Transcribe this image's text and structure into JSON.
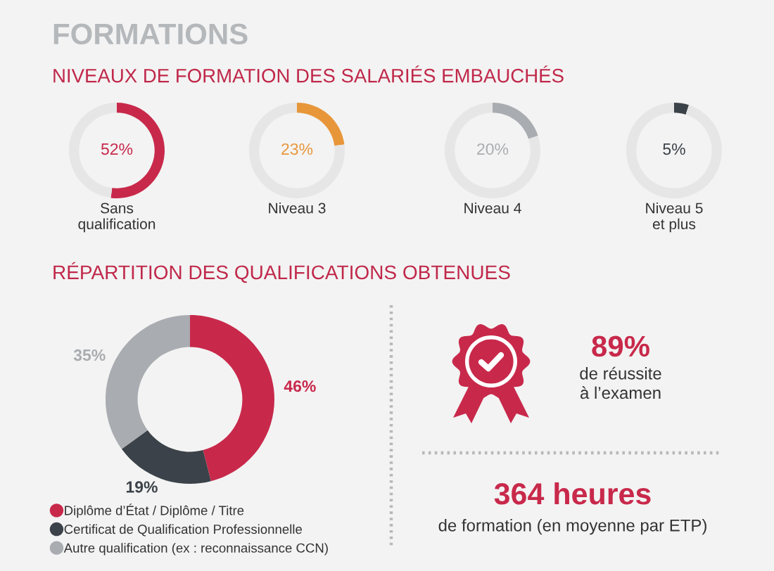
{
  "chart_data": [
    {
      "type": "other",
      "title": "FORMATIONS",
      "subtitle": "NIVEAUX DE FORMATION DES SALARIÉS EMBAUCHÉS"
    },
    {
      "type": "donut",
      "title": "Sans\nqualification",
      "categories": [
        null,
        null
      ],
      "values": [
        52,
        48
      ],
      "colors": [
        "#c8294b",
        "#e6e6e6"
      ],
      "value_labels": [
        "52%",
        null
      ]
    },
    {
      "type": "donut",
      "title": "Niveau 3",
      "categories": [
        null,
        null
      ],
      "values": [
        23,
        77
      ],
      "colors": [
        "#e8963a",
        "#e6e6e6"
      ],
      "value_labels": [
        "23%",
        null
      ]
    },
    {
      "type": "donut",
      "title": "Niveau 4",
      "categories": [
        null,
        null
      ],
      "values": [
        20,
        80
      ],
      "colors": [
        "#a9acb0",
        "#e6e6e6"
      ],
      "value_labels": [
        "20%",
        null
      ]
    },
    {
      "type": "donut",
      "title": "Niveau 5\net plus",
      "categories": [
        null,
        null
      ],
      "values": [
        5,
        95
      ],
      "colors": [
        "#3c4249",
        "#e6e6e6"
      ],
      "value_labels": [
        "5%",
        null
      ]
    },
    {
      "type": "donut",
      "title": "RÉPARTITION DES QUALIFICATIONS OBTENUES",
      "categories": [
        "Diplôme d’État / Diplôme / Titre",
        "Certificat de Qualification Professionnelle",
        "Autre qualification (ex : reconnaissance CCN)"
      ],
      "values": [
        46,
        19,
        35
      ],
      "colors": [
        "#c8294b",
        "#3c4249",
        "#a9acb0"
      ],
      "value_labels": [
        "46%",
        "19%",
        "35%"
      ],
      "legend": "bottom"
    },
    {
      "type": "other",
      "title": "89%",
      "annotations": [
        "de réussite\nà l’examen"
      ]
    },
    {
      "type": "other",
      "title": "364 heures",
      "annotations": [
        "de formation (en moyenne par ETP)"
      ]
    }
  ]
}
